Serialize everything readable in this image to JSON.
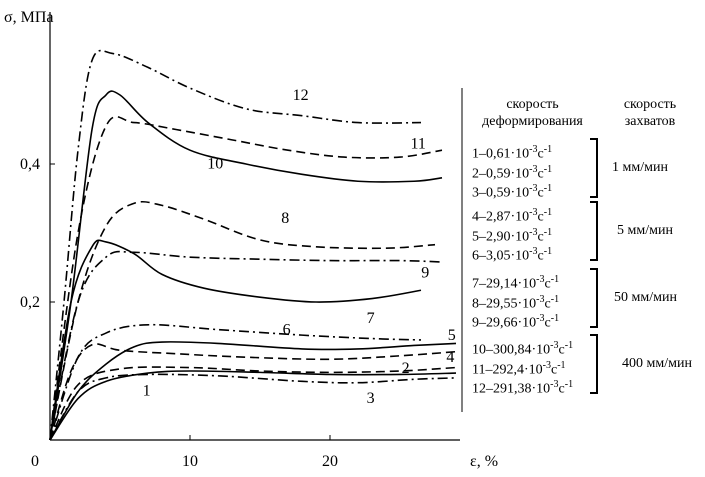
{
  "chart_data": {
    "type": "line",
    "xlabel": "ε, %",
    "ylabel": "σ, МПа",
    "xlim": [
      0,
      29
    ],
    "ylim": [
      0,
      0.6
    ],
    "x_ticks": [
      {
        "v": 0,
        "label": "0"
      },
      {
        "v": 10,
        "label": "10"
      },
      {
        "v": 20,
        "label": "20"
      }
    ],
    "y_ticks": [
      {
        "v": 0.2,
        "label": "0,2"
      },
      {
        "v": 0.4,
        "label": "0,4"
      }
    ],
    "grid": false,
    "series": [
      {
        "name": "1",
        "style": "solid",
        "points": [
          [
            0,
            0
          ],
          [
            2,
            0.06
          ],
          [
            4,
            0.085
          ],
          [
            7,
            0.097
          ],
          [
            10,
            0.1
          ],
          [
            15,
            0.098
          ],
          [
            20,
            0.095
          ],
          [
            25,
            0.095
          ],
          [
            29,
            0.097
          ]
        ],
        "label_at": [
          6.9,
          0.072
        ]
      },
      {
        "name": "2",
        "style": "dashed",
        "points": [
          [
            0,
            0
          ],
          [
            2,
            0.08
          ],
          [
            5,
            0.103
          ],
          [
            10,
            0.105
          ],
          [
            15,
            0.1
          ],
          [
            20,
            0.098
          ],
          [
            25,
            0.1
          ],
          [
            29,
            0.105
          ]
        ],
        "label_at": [
          25.4,
          0.104
        ]
      },
      {
        "name": "3",
        "style": "dashdot",
        "points": [
          [
            0,
            0
          ],
          [
            2,
            0.07
          ],
          [
            4,
            0.09
          ],
          [
            7,
            0.095
          ],
          [
            12,
            0.093
          ],
          [
            18,
            0.085
          ],
          [
            22,
            0.083
          ],
          [
            26,
            0.088
          ],
          [
            29,
            0.09
          ]
        ],
        "label_at": [
          22.9,
          0.061
        ]
      },
      {
        "name": "4",
        "style": "dashed",
        "points": [
          [
            0,
            0
          ],
          [
            1.5,
            0.1
          ],
          [
            3,
            0.138
          ],
          [
            5,
            0.13
          ],
          [
            9,
            0.125
          ],
          [
            14,
            0.12
          ],
          [
            20,
            0.117
          ],
          [
            25,
            0.122
          ],
          [
            29,
            0.128
          ]
        ],
        "label_at": [
          28.6,
          0.12
        ]
      },
      {
        "name": "5",
        "style": "solid",
        "points": [
          [
            0,
            0
          ],
          [
            2,
            0.07
          ],
          [
            4,
            0.11
          ],
          [
            6,
            0.135
          ],
          [
            8,
            0.142
          ],
          [
            12,
            0.14
          ],
          [
            18,
            0.132
          ],
          [
            22,
            0.132
          ],
          [
            26,
            0.137
          ],
          [
            29,
            0.14
          ]
        ],
        "label_at": [
          28.7,
          0.152
        ]
      },
      {
        "name": "6",
        "style": "dashdot",
        "points": [
          [
            0,
            0
          ],
          [
            2,
            0.12
          ],
          [
            4,
            0.155
          ],
          [
            7,
            0.167
          ],
          [
            12,
            0.16
          ],
          [
            18,
            0.152
          ],
          [
            23,
            0.147
          ],
          [
            26.5,
            0.145
          ]
        ],
        "label_at": [
          16.9,
          0.16
        ]
      },
      {
        "name": "7",
        "style": "solid",
        "points": [
          [
            0,
            0
          ],
          [
            1.5,
            0.2
          ],
          [
            3,
            0.28
          ],
          [
            4,
            0.287
          ],
          [
            6,
            0.27
          ],
          [
            8,
            0.24
          ],
          [
            11,
            0.22
          ],
          [
            15,
            0.207
          ],
          [
            19,
            0.2
          ],
          [
            23,
            0.205
          ],
          [
            26.5,
            0.217
          ]
        ],
        "label_at": [
          22.9,
          0.177
        ]
      },
      {
        "name": "8",
        "style": "dashed",
        "points": [
          [
            0,
            0
          ],
          [
            2,
            0.2
          ],
          [
            4,
            0.31
          ],
          [
            6,
            0.343
          ],
          [
            8,
            0.34
          ],
          [
            11,
            0.32
          ],
          [
            15,
            0.29
          ],
          [
            19,
            0.28
          ],
          [
            24,
            0.278
          ],
          [
            27.5,
            0.283
          ]
        ],
        "label_at": [
          16.8,
          0.322
        ]
      },
      {
        "name": "9",
        "style": "dashdot",
        "points": [
          [
            0,
            0
          ],
          [
            2,
            0.2
          ],
          [
            4,
            0.265
          ],
          [
            6,
            0.272
          ],
          [
            10,
            0.265
          ],
          [
            15,
            0.262
          ],
          [
            20,
            0.26
          ],
          [
            25,
            0.26
          ],
          [
            28,
            0.258
          ]
        ],
        "label_at": [
          26.8,
          0.243
        ]
      },
      {
        "name": "10",
        "style": "solid",
        "points": [
          [
            0,
            0
          ],
          [
            1.5,
            0.2
          ],
          [
            3,
            0.45
          ],
          [
            4,
            0.5
          ],
          [
            5,
            0.5
          ],
          [
            7,
            0.46
          ],
          [
            10,
            0.42
          ],
          [
            14,
            0.4
          ],
          [
            18,
            0.385
          ],
          [
            22,
            0.375
          ],
          [
            26,
            0.375
          ],
          [
            28,
            0.38
          ]
        ],
        "label_at": [
          11.8,
          0.401
        ]
      },
      {
        "name": "11",
        "style": "dashed",
        "points": [
          [
            0,
            0
          ],
          [
            2,
            0.3
          ],
          [
            4,
            0.455
          ],
          [
            6,
            0.46
          ],
          [
            9,
            0.45
          ],
          [
            13,
            0.435
          ],
          [
            17,
            0.42
          ],
          [
            21,
            0.41
          ],
          [
            25,
            0.41
          ],
          [
            28,
            0.42
          ]
        ],
        "label_at": [
          26.3,
          0.43
        ]
      },
      {
        "name": "12",
        "style": "dashdot",
        "points": [
          [
            0,
            0
          ],
          [
            1,
            0.2
          ],
          [
            2,
            0.42
          ],
          [
            3,
            0.55
          ],
          [
            4.5,
            0.56
          ],
          [
            7,
            0.54
          ],
          [
            10,
            0.51
          ],
          [
            14,
            0.48
          ],
          [
            18,
            0.47
          ],
          [
            22,
            0.46
          ],
          [
            26.5,
            0.46
          ]
        ],
        "label_at": [
          17.9,
          0.5
        ]
      }
    ],
    "legend": {
      "placement": "right",
      "header_rate": [
        "скорость",
        "деформирования"
      ],
      "header_grip": [
        "скорость",
        "захватов"
      ],
      "groups": [
        {
          "grip": "1 мм/мин",
          "items": [
            [
              "1–0,61·10",
              "-3",
              "с",
              "-1"
            ],
            [
              "2–0,59·10",
              "-3",
              "с",
              "-1"
            ],
            [
              "3–0,59·10",
              "-3",
              "с",
              "-1"
            ]
          ]
        },
        {
          "grip": "5 мм/мин",
          "items": [
            [
              "4–2,87·10",
              "-3",
              "с",
              "-1"
            ],
            [
              "5–2,90·10",
              "-3",
              "с",
              "-1"
            ],
            [
              "6–3,05·10",
              "-3",
              "с",
              "-1"
            ]
          ]
        },
        {
          "grip": "50 мм/мин",
          "items": [
            [
              "7–29,14·10",
              "-3",
              "с",
              "-1"
            ],
            [
              "8–29,55·10",
              "-3",
              "с",
              "-1"
            ],
            [
              "9–29,66·10",
              "-3",
              "с",
              "-1"
            ]
          ]
        },
        {
          "grip": "400 мм/мин",
          "items": [
            [
              "10–300,84·10",
              "-3",
              "с",
              "-1"
            ],
            [
              "11–292,4·10",
              "-3",
              "с",
              "-1"
            ],
            [
              "12–291,38·10",
              "-3",
              "с",
              "-1"
            ]
          ]
        }
      ]
    }
  }
}
